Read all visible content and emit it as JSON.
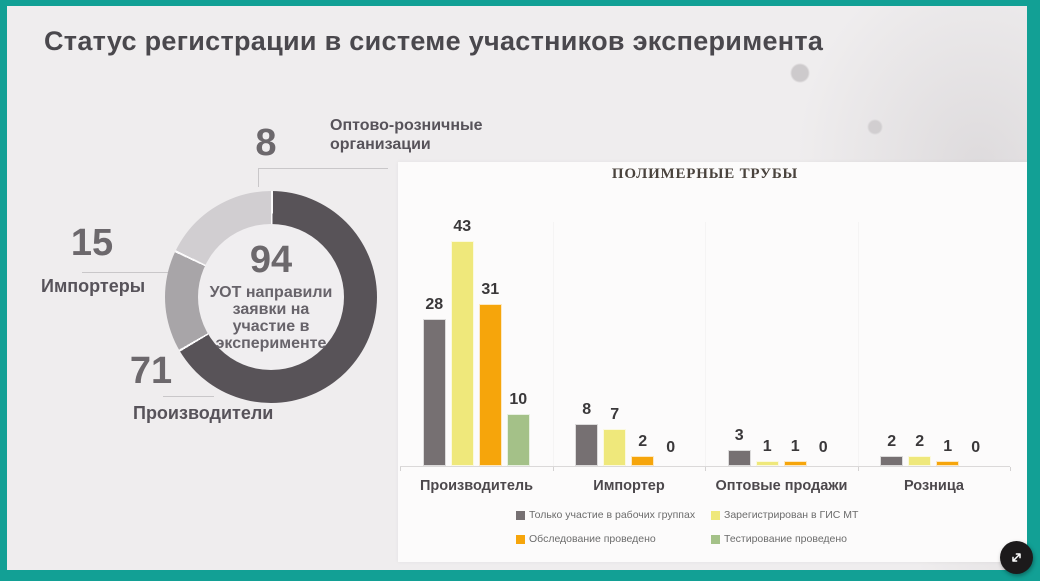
{
  "slide": {
    "title": "Статус регистрации в системе участников эксперимента"
  },
  "colors": {
    "accent_border": "#12a095",
    "background": "#efedee",
    "panel": "#fcfbfb"
  },
  "chart_data": [
    {
      "type": "pie",
      "subtype": "donut",
      "total": 94,
      "center_value": "94",
      "center_label": "УОТ направили\nзаявки на\nучастие в\nэксперименте",
      "legend_position": "callouts",
      "slices": [
        {
          "label": "Производители",
          "value": 71,
          "color": "#585358",
          "display_from": 0,
          "display_to": 239
        },
        {
          "label": "Импортеры",
          "value": 15,
          "color": "#a8a5a8",
          "display_from": 239,
          "display_to": 295
        },
        {
          "label": "Оптово-розничные организации",
          "value": 8,
          "color": "#d1ced1",
          "display_from": 295,
          "display_to": 360
        }
      ]
    },
    {
      "type": "bar",
      "title": "ПОЛИМЕРНЫЕ ТРУБЫ",
      "categories": [
        "Производитель",
        "Импортер",
        "Оптовые продажи",
        "Розница"
      ],
      "series": [
        {
          "name": "Только участие в рабочих группах",
          "color": "#767072",
          "values": [
            28,
            8,
            3,
            2
          ]
        },
        {
          "name": "Зарегистрирован в ГИС МТ",
          "color": "#efe87b",
          "values": [
            43,
            7,
            1,
            2
          ]
        },
        {
          "name": "Обследование проведено",
          "color": "#f6a50b",
          "values": [
            31,
            2,
            1,
            1
          ]
        },
        {
          "name": "Тестирование проведено",
          "color": "#a4c188",
          "values": [
            10,
            0,
            0,
            0
          ]
        }
      ],
      "ylim": [
        0,
        45
      ],
      "grid": false,
      "value_labels": true,
      "legend_position": "bottom"
    }
  ],
  "focus_button": {
    "icon": "expand-diagonal"
  }
}
